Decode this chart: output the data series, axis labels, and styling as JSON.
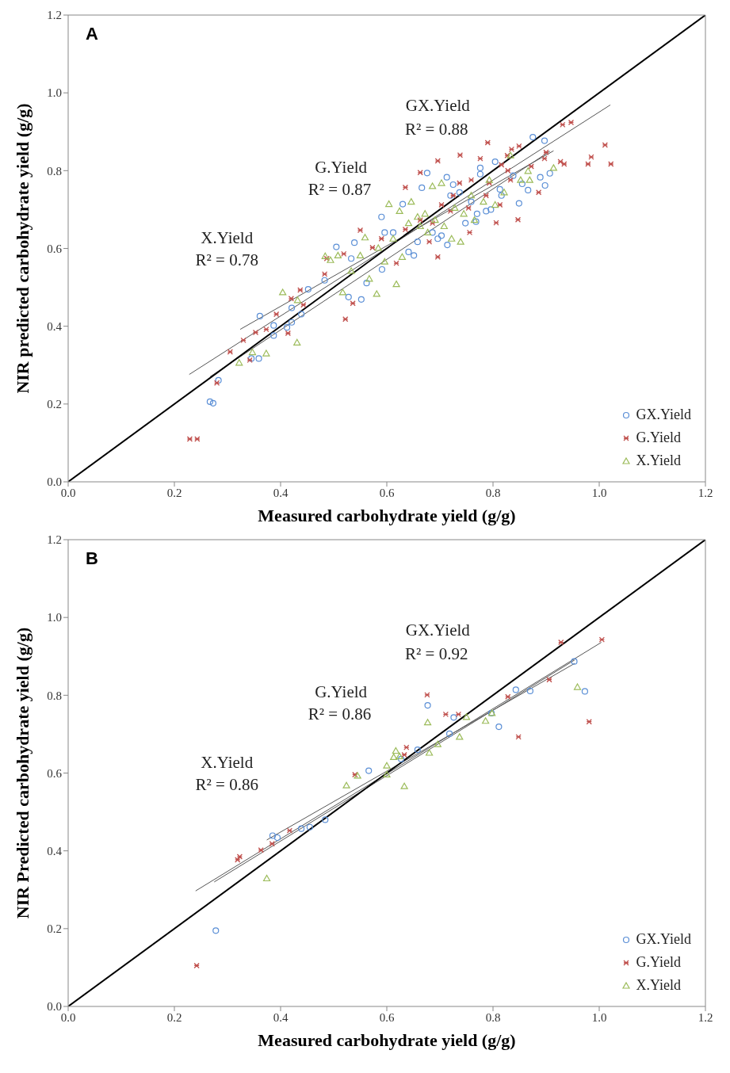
{
  "chart_data": [
    {
      "type": "scatter",
      "title": "A",
      "xlabel": "Measured carbohydrate yield (g/g)",
      "ylabel": "NIR predicted carbohydrate yield (g/g)",
      "xlim": [
        0,
        1.2
      ],
      "ylim": [
        0,
        1.2
      ],
      "xticks": [
        {
          "value": 0,
          "label": "0.0"
        },
        {
          "value": 0.2,
          "label": "0.2"
        },
        {
          "value": 0.4,
          "label": "0.4"
        },
        {
          "value": 0.6,
          "label": "0.6"
        },
        {
          "value": 0.8,
          "label": "0.8"
        },
        {
          "value": 1,
          "label": "1.0"
        },
        {
          "value": 1.2,
          "label": "1.2"
        }
      ],
      "yticks": [
        {
          "value": 0,
          "label": "0.0"
        },
        {
          "value": 0.2,
          "label": "0.2"
        },
        {
          "value": 0.4,
          "label": "0.4"
        },
        {
          "value": 0.6,
          "label": "0.6"
        },
        {
          "value": 0.8,
          "label": "0.8"
        },
        {
          "value": 1,
          "label": "1.0"
        },
        {
          "value": 1.2,
          "label": "1.2"
        }
      ],
      "legend": "bottom right",
      "grid": false,
      "annotations": [
        "GX.Yield",
        "R² = 0.88",
        "G.Yield",
        "R² = 0.87",
        "X.Yield",
        "R² = 0.78"
      ],
      "series": [
        {
          "name": "GX.Yield",
          "color": "#5b8fd6",
          "marker": "circle",
          "x": [
            0.267,
            0.273,
            0.283,
            0.345,
            0.359,
            0.361,
            0.387,
            0.387,
            0.412,
            0.421,
            0.421,
            0.439,
            0.452,
            0.483,
            0.505,
            0.528,
            0.539,
            0.552,
            0.533,
            0.562,
            0.591,
            0.59,
            0.596,
            0.612,
            0.63,
            0.641,
            0.651,
            0.658,
            0.666,
            0.676,
            0.686,
            0.696,
            0.703,
            0.714,
            0.713,
            0.72,
            0.725,
            0.737,
            0.748,
            0.759,
            0.768,
            0.77,
            0.776,
            0.776,
            0.787,
            0.796,
            0.804,
            0.813,
            0.816,
            0.838,
            0.849,
            0.855,
            0.866,
            0.875,
            0.889,
            0.897,
            0.898,
            0.907
          ],
          "values": [
            0.206,
            0.202,
            0.261,
            0.317,
            0.317,
            0.426,
            0.376,
            0.402,
            0.397,
            0.447,
            0.41,
            0.431,
            0.495,
            0.518,
            0.604,
            0.475,
            0.615,
            0.469,
            0.574,
            0.511,
            0.546,
            0.681,
            0.641,
            0.641,
            0.714,
            0.591,
            0.582,
            0.617,
            0.756,
            0.794,
            0.641,
            0.625,
            0.633,
            0.609,
            0.783,
            0.736,
            0.764,
            0.744,
            0.665,
            0.72,
            0.669,
            0.689,
            0.807,
            0.791,
            0.696,
            0.7,
            0.823,
            0.752,
            0.736,
            0.787,
            0.716,
            0.766,
            0.75,
            0.886,
            0.783,
            0.877,
            0.762,
            0.793
          ]
        },
        {
          "name": "G.Yield",
          "color": "#c0504d",
          "marker": "cross",
          "x": [
            0.229,
            0.243,
            0.28,
            0.305,
            0.33,
            0.342,
            0.353,
            0.373,
            0.392,
            0.414,
            0.42,
            0.437,
            0.443,
            0.483,
            0.487,
            0.519,
            0.522,
            0.536,
            0.55,
            0.573,
            0.59,
            0.618,
            0.635,
            0.635,
            0.663,
            0.663,
            0.68,
            0.686,
            0.696,
            0.696,
            0.703,
            0.72,
            0.725,
            0.737,
            0.738,
            0.754,
            0.756,
            0.759,
            0.776,
            0.787,
            0.79,
            0.793,
            0.806,
            0.813,
            0.816,
            0.827,
            0.828,
            0.833,
            0.835,
            0.847,
            0.849,
            0.872,
            0.886,
            0.897,
            0.9,
            0.927,
            0.931,
            0.934,
            0.947,
            0.979,
            0.985,
            1.011,
            1.022
          ],
          "values": [
            0.11,
            0.11,
            0.254,
            0.334,
            0.364,
            0.313,
            0.384,
            0.392,
            0.431,
            0.382,
            0.471,
            0.493,
            0.455,
            0.534,
            0.574,
            0.586,
            0.418,
            0.459,
            0.647,
            0.602,
            0.625,
            0.562,
            0.649,
            0.757,
            0.795,
            0.673,
            0.617,
            0.665,
            0.578,
            0.825,
            0.712,
            0.696,
            0.736,
            0.768,
            0.84,
            0.704,
            0.641,
            0.776,
            0.831,
            0.736,
            0.872,
            0.768,
            0.666,
            0.712,
            0.815,
            0.839,
            0.8,
            0.776,
            0.855,
            0.674,
            0.863,
            0.811,
            0.744,
            0.831,
            0.847,
            0.823,
            0.918,
            0.817,
            0.924,
            0.817,
            0.835,
            0.866,
            0.817
          ]
        },
        {
          "name": "X.Yield",
          "color": "#9bbb59",
          "marker": "triangle",
          "x": [
            0.322,
            0.347,
            0.373,
            0.404,
            0.431,
            0.432,
            0.484,
            0.494,
            0.508,
            0.517,
            0.533,
            0.55,
            0.559,
            0.567,
            0.581,
            0.584,
            0.596,
            0.604,
            0.612,
            0.618,
            0.624,
            0.629,
            0.641,
            0.646,
            0.658,
            0.663,
            0.672,
            0.677,
            0.686,
            0.691,
            0.703,
            0.708,
            0.722,
            0.728,
            0.739,
            0.745,
            0.759,
            0.765,
            0.782,
            0.793,
            0.804,
            0.821,
            0.833,
            0.852,
            0.866,
            0.869,
            0.914
          ],
          "values": [
            0.306,
            0.333,
            0.33,
            0.487,
            0.358,
            0.467,
            0.58,
            0.57,
            0.582,
            0.487,
            0.542,
            0.582,
            0.628,
            0.522,
            0.483,
            0.601,
            0.566,
            0.714,
            0.625,
            0.508,
            0.696,
            0.578,
            0.665,
            0.72,
            0.681,
            0.657,
            0.689,
            0.641,
            0.76,
            0.673,
            0.768,
            0.657,
            0.625,
            0.704,
            0.617,
            0.689,
            0.736,
            0.673,
            0.72,
            0.776,
            0.712,
            0.744,
            0.839,
            0.776,
            0.799,
            0.776,
            0.807
          ]
        },
        {
          "type": "line",
          "color": "#555555",
          "x": [
            0.228,
            1.021
          ],
          "values": [
            0.276,
            0.969
          ]
        },
        {
          "type": "line",
          "color": "#555555",
          "x": [
            0.267,
            0.907
          ],
          "values": [
            0.27,
            0.85
          ]
        },
        {
          "type": "line",
          "color": "#555555",
          "x": [
            0.324,
            0.914
          ],
          "values": [
            0.392,
            0.851
          ]
        },
        {
          "type": "line",
          "color": "#000000",
          "x": [
            0,
            1.2
          ],
          "values": [
            0,
            1.2
          ]
        }
      ]
    },
    {
      "type": "scatter",
      "title": "B",
      "xlabel": "Measured carbohydrate yield (g/g)",
      "ylabel": "NIR Predicted carbohydrate yield (g/g)",
      "xlim": [
        0,
        1.2
      ],
      "ylim": [
        0,
        1.2
      ],
      "xticks": [
        {
          "value": 0,
          "label": "0.0"
        },
        {
          "value": 0.2,
          "label": "0.2"
        },
        {
          "value": 0.4,
          "label": "0.4"
        },
        {
          "value": 0.6,
          "label": "0.6"
        },
        {
          "value": 0.8,
          "label": "0.8"
        },
        {
          "value": 1,
          "label": "1.0"
        },
        {
          "value": 1.2,
          "label": "1.2"
        }
      ],
      "yticks": [
        {
          "value": 0,
          "label": "0.0"
        },
        {
          "value": 0.2,
          "label": "0.2"
        },
        {
          "value": 0.4,
          "label": "0.4"
        },
        {
          "value": 0.6,
          "label": "0.6"
        },
        {
          "value": 0.8,
          "label": "0.8"
        },
        {
          "value": 1,
          "label": "1.0"
        },
        {
          "value": 1.2,
          "label": "1.2"
        }
      ],
      "legend": "bottom right",
      "grid": false,
      "annotations": [
        "GX.Yield",
        "R² = 0.92",
        "G.Yield",
        "R² = 0.86",
        "X.Yield",
        "R² = 0.86"
      ],
      "series": [
        {
          "name": "GX.Yield",
          "color": "#5b8fd6",
          "marker": "circle",
          "x": [
            0.278,
            0.385,
            0.394,
            0.439,
            0.455,
            0.484,
            0.566,
            0.627,
            0.658,
            0.677,
            0.726,
            0.718,
            0.811,
            0.797,
            0.843,
            0.87,
            0.953,
            0.973
          ],
          "values": [
            0.195,
            0.439,
            0.434,
            0.457,
            0.461,
            0.48,
            0.606,
            0.636,
            0.66,
            0.774,
            0.743,
            0.701,
            0.719,
            0.754,
            0.814,
            0.811,
            0.887,
            0.81
          ]
        },
        {
          "name": "G.Yield",
          "color": "#c0504d",
          "marker": "cross",
          "x": [
            0.242,
            0.319,
            0.323,
            0.363,
            0.384,
            0.417,
            0.54,
            0.637,
            0.633,
            0.676,
            0.711,
            0.735,
            0.828,
            0.848,
            0.906,
            0.928,
            1.005,
            0.981
          ],
          "values": [
            0.105,
            0.377,
            0.385,
            0.402,
            0.418,
            0.452,
            0.596,
            0.666,
            0.647,
            0.801,
            0.751,
            0.751,
            0.796,
            0.693,
            0.84,
            0.936,
            0.943,
            0.732
          ]
        },
        {
          "name": "X.Yield",
          "color": "#9bbb59",
          "marker": "triangle",
          "x": [
            0.374,
            0.524,
            0.545,
            0.6,
            0.6,
            0.617,
            0.613,
            0.624,
            0.633,
            0.677,
            0.68,
            0.696,
            0.737,
            0.75,
            0.786,
            0.798,
            0.959
          ],
          "values": [
            0.329,
            0.568,
            0.593,
            0.619,
            0.596,
            0.657,
            0.641,
            0.643,
            0.566,
            0.73,
            0.652,
            0.674,
            0.693,
            0.744,
            0.734,
            0.754,
            0.821
          ]
        },
        {
          "type": "line",
          "color": "#555555",
          "x": [
            0.24,
            1.004
          ],
          "values": [
            0.297,
            0.936
          ]
        },
        {
          "type": "line",
          "color": "#555555",
          "x": [
            0.275,
            0.954
          ],
          "values": [
            0.32,
            0.891
          ]
        },
        {
          "type": "line",
          "color": "#555555",
          "x": [
            0.374,
            0.954
          ],
          "values": [
            0.428,
            0.882
          ]
        },
        {
          "type": "line",
          "color": "#000000",
          "x": [
            0,
            1.2
          ],
          "values": [
            0,
            1.2
          ]
        }
      ]
    }
  ]
}
